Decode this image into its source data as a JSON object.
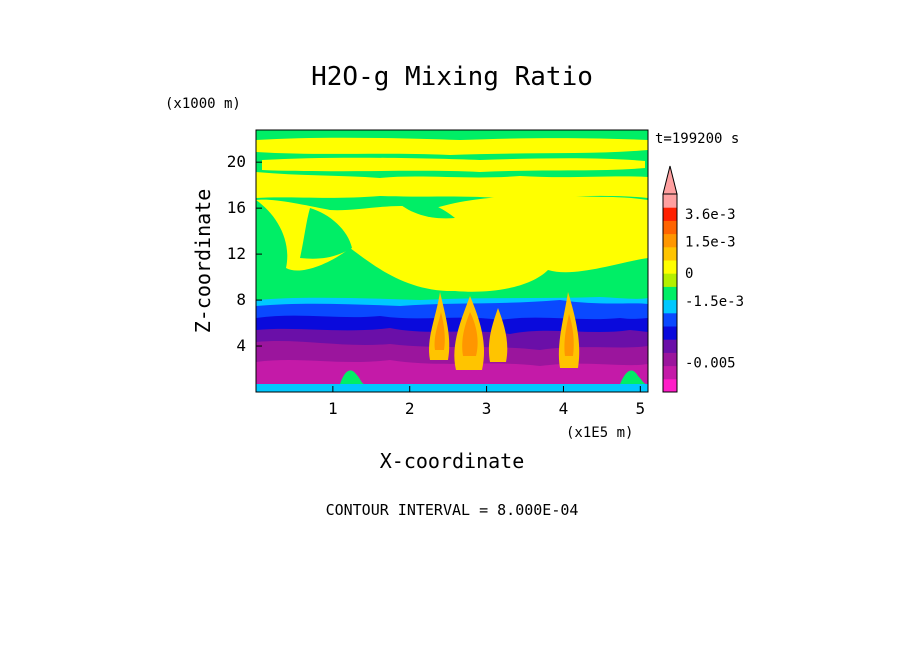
{
  "chart_data": {
    "type": "heatmap",
    "title": "H2O-g Mixing Ratio",
    "time_label": "t=199200 s",
    "xlabel": "X-coordinate",
    "ylabel": "Z-coordinate",
    "x_unit": "(x1E5 m)",
    "y_unit": "(x1000 m)",
    "xlim": [
      0,
      5.1
    ],
    "ylim": [
      0,
      22.8
    ],
    "x_ticks": [
      {
        "v": 1,
        "label": "1"
      },
      {
        "v": 2,
        "label": "2"
      },
      {
        "v": 3,
        "label": "3"
      },
      {
        "v": 4,
        "label": "4"
      },
      {
        "v": 5,
        "label": "5"
      }
    ],
    "y_ticks": [
      {
        "v": 4,
        "label": "4"
      },
      {
        "v": 8,
        "label": "8"
      },
      {
        "v": 12,
        "label": "12"
      },
      {
        "v": 16,
        "label": "16"
      },
      {
        "v": 20,
        "label": "20"
      }
    ],
    "contour_interval": "CONTOUR INTERVAL = 8.000E-04",
    "colorbar": {
      "colors": [
        "#ff1ec8",
        "#c41aa8",
        "#9b159d",
        "#6a0fa8",
        "#0a0adc",
        "#0a49ff",
        "#00c8ff",
        "#00ee66",
        "#b4f000",
        "#ffff00",
        "#ffc400",
        "#ff9600",
        "#ff6400",
        "#ff2000",
        "#ffa0a0"
      ],
      "labels": [
        {
          "level": 4.5,
          "text": "3.6e-3"
        },
        {
          "level": 3.8,
          "text": "1.5e-3"
        },
        {
          "level": 3.0,
          "text": "0"
        },
        {
          "level": 2.3,
          "text": "-1.5e-3"
        },
        {
          "level": 0.75,
          "text": "-0.005"
        }
      ]
    }
  }
}
